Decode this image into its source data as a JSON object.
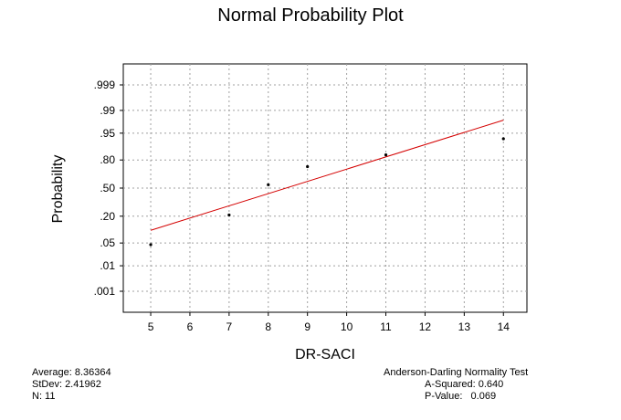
{
  "chart_data": {
    "type": "scatter",
    "title": "Normal Probability Plot",
    "xlabel": "DR-SACI",
    "ylabel": "Probability",
    "x_ticks": [
      5,
      6,
      7,
      8,
      9,
      10,
      11,
      12,
      13,
      14
    ],
    "y_ticks": [
      ".001",
      ".01",
      ".05",
      ".20",
      ".50",
      ".80",
      ".95",
      ".99",
      ".999"
    ],
    "y_tick_values": [
      0.001,
      0.01,
      0.05,
      0.2,
      0.5,
      0.8,
      0.95,
      0.99,
      0.999
    ],
    "xlim": [
      4.3,
      14.6
    ],
    "ylim": [
      0.0001,
      0.9999
    ],
    "y_scale": "normal-probability",
    "grid": true,
    "points": [
      {
        "x": 5,
        "p": 0.045
      },
      {
        "x": 7,
        "p": 0.21
      },
      {
        "x": 8,
        "p": 0.54
      },
      {
        "x": 9,
        "p": 0.74
      },
      {
        "x": 11,
        "p": 0.84
      },
      {
        "x": 14,
        "p": 0.93
      }
    ],
    "fit_line": {
      "x": [
        5,
        14
      ],
      "p": [
        0.103,
        0.979
      ]
    },
    "point_color": "#000000",
    "line_color": "#d40000"
  },
  "stats": {
    "average": "Average: 8.36364",
    "stdev": "StDev: 2.41962",
    "n": "N: 11",
    "test_name": "Anderson-Darling Normality Test",
    "a_squared": "A-Squared: 0.640",
    "p_value": "P-Value:   0.069"
  }
}
